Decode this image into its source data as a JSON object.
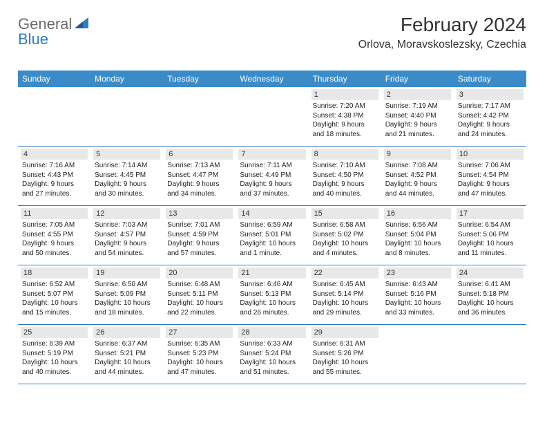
{
  "logo": {
    "part1": "General",
    "part2": "Blue"
  },
  "header": {
    "title": "February 2024",
    "location": "Orlova, Moravskoslezsky, Czechia"
  },
  "colors": {
    "header_bg": "#3b8bc9",
    "daynum_bg": "#e8e8e8",
    "border": "#2f7bbf",
    "logo_gray": "#6b6b6b",
    "logo_blue": "#2f7bbf"
  },
  "dayNames": [
    "Sunday",
    "Monday",
    "Tuesday",
    "Wednesday",
    "Thursday",
    "Friday",
    "Saturday"
  ],
  "weeks": [
    [
      {
        "n": "",
        "empty": true
      },
      {
        "n": "",
        "empty": true
      },
      {
        "n": "",
        "empty": true
      },
      {
        "n": "",
        "empty": true
      },
      {
        "n": "1",
        "sunrise": "Sunrise: 7:20 AM",
        "sunset": "Sunset: 4:38 PM",
        "d1": "Daylight: 9 hours",
        "d2": "and 18 minutes."
      },
      {
        "n": "2",
        "sunrise": "Sunrise: 7:19 AM",
        "sunset": "Sunset: 4:40 PM",
        "d1": "Daylight: 9 hours",
        "d2": "and 21 minutes."
      },
      {
        "n": "3",
        "sunrise": "Sunrise: 7:17 AM",
        "sunset": "Sunset: 4:42 PM",
        "d1": "Daylight: 9 hours",
        "d2": "and 24 minutes."
      }
    ],
    [
      {
        "n": "4",
        "sunrise": "Sunrise: 7:16 AM",
        "sunset": "Sunset: 4:43 PM",
        "d1": "Daylight: 9 hours",
        "d2": "and 27 minutes."
      },
      {
        "n": "5",
        "sunrise": "Sunrise: 7:14 AM",
        "sunset": "Sunset: 4:45 PM",
        "d1": "Daylight: 9 hours",
        "d2": "and 30 minutes."
      },
      {
        "n": "6",
        "sunrise": "Sunrise: 7:13 AM",
        "sunset": "Sunset: 4:47 PM",
        "d1": "Daylight: 9 hours",
        "d2": "and 34 minutes."
      },
      {
        "n": "7",
        "sunrise": "Sunrise: 7:11 AM",
        "sunset": "Sunset: 4:49 PM",
        "d1": "Daylight: 9 hours",
        "d2": "and 37 minutes."
      },
      {
        "n": "8",
        "sunrise": "Sunrise: 7:10 AM",
        "sunset": "Sunset: 4:50 PM",
        "d1": "Daylight: 9 hours",
        "d2": "and 40 minutes."
      },
      {
        "n": "9",
        "sunrise": "Sunrise: 7:08 AM",
        "sunset": "Sunset: 4:52 PM",
        "d1": "Daylight: 9 hours",
        "d2": "and 44 minutes."
      },
      {
        "n": "10",
        "sunrise": "Sunrise: 7:06 AM",
        "sunset": "Sunset: 4:54 PM",
        "d1": "Daylight: 9 hours",
        "d2": "and 47 minutes."
      }
    ],
    [
      {
        "n": "11",
        "sunrise": "Sunrise: 7:05 AM",
        "sunset": "Sunset: 4:55 PM",
        "d1": "Daylight: 9 hours",
        "d2": "and 50 minutes."
      },
      {
        "n": "12",
        "sunrise": "Sunrise: 7:03 AM",
        "sunset": "Sunset: 4:57 PM",
        "d1": "Daylight: 9 hours",
        "d2": "and 54 minutes."
      },
      {
        "n": "13",
        "sunrise": "Sunrise: 7:01 AM",
        "sunset": "Sunset: 4:59 PM",
        "d1": "Daylight: 9 hours",
        "d2": "and 57 minutes."
      },
      {
        "n": "14",
        "sunrise": "Sunrise: 6:59 AM",
        "sunset": "Sunset: 5:01 PM",
        "d1": "Daylight: 10 hours",
        "d2": "and 1 minute."
      },
      {
        "n": "15",
        "sunrise": "Sunrise: 6:58 AM",
        "sunset": "Sunset: 5:02 PM",
        "d1": "Daylight: 10 hours",
        "d2": "and 4 minutes."
      },
      {
        "n": "16",
        "sunrise": "Sunrise: 6:56 AM",
        "sunset": "Sunset: 5:04 PM",
        "d1": "Daylight: 10 hours",
        "d2": "and 8 minutes."
      },
      {
        "n": "17",
        "sunrise": "Sunrise: 6:54 AM",
        "sunset": "Sunset: 5:06 PM",
        "d1": "Daylight: 10 hours",
        "d2": "and 11 minutes."
      }
    ],
    [
      {
        "n": "18",
        "sunrise": "Sunrise: 6:52 AM",
        "sunset": "Sunset: 5:07 PM",
        "d1": "Daylight: 10 hours",
        "d2": "and 15 minutes."
      },
      {
        "n": "19",
        "sunrise": "Sunrise: 6:50 AM",
        "sunset": "Sunset: 5:09 PM",
        "d1": "Daylight: 10 hours",
        "d2": "and 18 minutes."
      },
      {
        "n": "20",
        "sunrise": "Sunrise: 6:48 AM",
        "sunset": "Sunset: 5:11 PM",
        "d1": "Daylight: 10 hours",
        "d2": "and 22 minutes."
      },
      {
        "n": "21",
        "sunrise": "Sunrise: 6:46 AM",
        "sunset": "Sunset: 5:13 PM",
        "d1": "Daylight: 10 hours",
        "d2": "and 26 minutes."
      },
      {
        "n": "22",
        "sunrise": "Sunrise: 6:45 AM",
        "sunset": "Sunset: 5:14 PM",
        "d1": "Daylight: 10 hours",
        "d2": "and 29 minutes."
      },
      {
        "n": "23",
        "sunrise": "Sunrise: 6:43 AM",
        "sunset": "Sunset: 5:16 PM",
        "d1": "Daylight: 10 hours",
        "d2": "and 33 minutes."
      },
      {
        "n": "24",
        "sunrise": "Sunrise: 6:41 AM",
        "sunset": "Sunset: 5:18 PM",
        "d1": "Daylight: 10 hours",
        "d2": "and 36 minutes."
      }
    ],
    [
      {
        "n": "25",
        "sunrise": "Sunrise: 6:39 AM",
        "sunset": "Sunset: 5:19 PM",
        "d1": "Daylight: 10 hours",
        "d2": "and 40 minutes."
      },
      {
        "n": "26",
        "sunrise": "Sunrise: 6:37 AM",
        "sunset": "Sunset: 5:21 PM",
        "d1": "Daylight: 10 hours",
        "d2": "and 44 minutes."
      },
      {
        "n": "27",
        "sunrise": "Sunrise: 6:35 AM",
        "sunset": "Sunset: 5:23 PM",
        "d1": "Daylight: 10 hours",
        "d2": "and 47 minutes."
      },
      {
        "n": "28",
        "sunrise": "Sunrise: 6:33 AM",
        "sunset": "Sunset: 5:24 PM",
        "d1": "Daylight: 10 hours",
        "d2": "and 51 minutes."
      },
      {
        "n": "29",
        "sunrise": "Sunrise: 6:31 AM",
        "sunset": "Sunset: 5:26 PM",
        "d1": "Daylight: 10 hours",
        "d2": "and 55 minutes."
      },
      {
        "n": "",
        "empty": true
      },
      {
        "n": "",
        "empty": true
      }
    ]
  ]
}
